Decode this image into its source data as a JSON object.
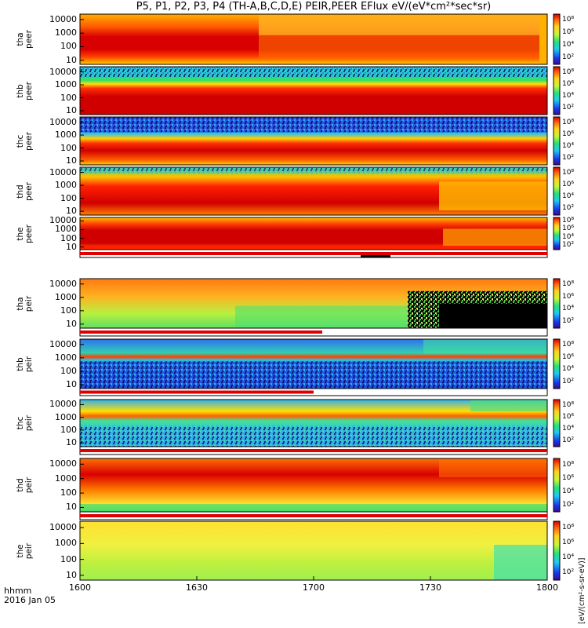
{
  "chart_data": {
    "type": "heatmap",
    "title": "P5, P1, P2, P3, P4 (TH-A,B,C,D,E) PEIR,PEER EFlux eV/(eV*cm²*sec*sr)",
    "colorbar_unit": "[eV/(cm²-s-sr-eV)]",
    "colorbar_ticks": [
      "10²",
      "10⁴",
      "10⁶",
      "10⁸"
    ],
    "x_ticks": [
      "1600",
      "1630",
      "1700",
      "1730",
      "1800"
    ],
    "x_label_line1": "hhmm",
    "x_label_line2": "2016 Jan 05",
    "y_ticks": [
      "10000",
      "1000",
      "100",
      "10"
    ],
    "y_scale": "log",
    "ylim": [
      5,
      25000
    ],
    "panels": [
      {
        "probe": "tha",
        "species": "peer",
        "y1": "tha",
        "y2": "peer"
      },
      {
        "probe": "thb",
        "species": "peer",
        "y1": "thb",
        "y2": "peer"
      },
      {
        "probe": "thc",
        "species": "peer",
        "y1": "thc",
        "y2": "peer"
      },
      {
        "probe": "thd",
        "species": "peer",
        "y1": "thd",
        "y2": "peer"
      },
      {
        "probe": "the",
        "species": "peer",
        "y1": "the",
        "y2": "peer"
      },
      {
        "probe": "tha",
        "species": "peir",
        "y1": "tha",
        "y2": "peir"
      },
      {
        "probe": "thb",
        "species": "peir",
        "y1": "thb",
        "y2": "peir"
      },
      {
        "probe": "thc",
        "species": "peir",
        "y1": "thc",
        "y2": "peir"
      },
      {
        "probe": "thd",
        "species": "peir",
        "y1": "thd",
        "y2": "peir"
      },
      {
        "probe": "the",
        "species": "peir",
        "y1": "the",
        "y2": "peir"
      }
    ]
  }
}
